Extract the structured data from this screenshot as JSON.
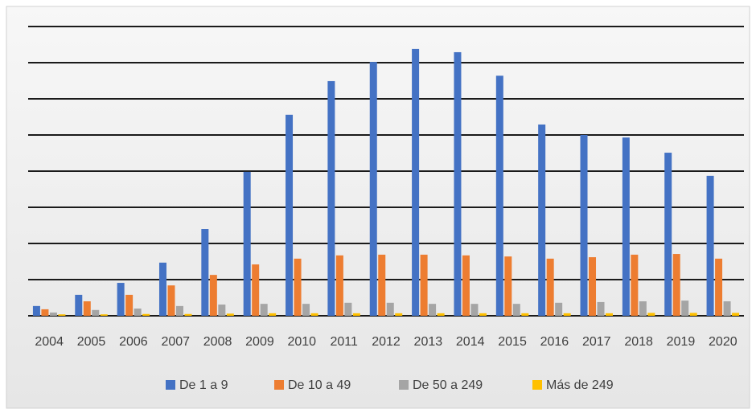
{
  "chart_data": {
    "type": "bar",
    "categories": [
      "2004",
      "2005",
      "2006",
      "2007",
      "2008",
      "2009",
      "2010",
      "2011",
      "2012",
      "2013",
      "2014",
      "2015",
      "2016",
      "2017",
      "2018",
      "2019",
      "2020"
    ],
    "series": [
      {
        "name": "De 1 a 9",
        "color": "#4472c4",
        "values": [
          0.27,
          0.58,
          0.91,
          1.47,
          2.4,
          3.98,
          5.56,
          6.49,
          7.02,
          7.38,
          7.29,
          6.64,
          5.29,
          5.0,
          4.93,
          4.51,
          3.87
        ]
      },
      {
        "name": "De 10 a 49",
        "color": "#ed7d31",
        "values": [
          0.18,
          0.4,
          0.58,
          0.84,
          1.13,
          1.42,
          1.58,
          1.67,
          1.69,
          1.69,
          1.67,
          1.64,
          1.58,
          1.62,
          1.69,
          1.71,
          1.58
        ]
      },
      {
        "name": "De 50 a 249",
        "color": "#a5a5a5",
        "values": [
          0.09,
          0.16,
          0.2,
          0.27,
          0.31,
          0.33,
          0.33,
          0.36,
          0.36,
          0.33,
          0.33,
          0.33,
          0.36,
          0.38,
          0.4,
          0.42,
          0.4
        ]
      },
      {
        "name": "Más de 249",
        "color": "#ffc000",
        "values": [
          0.04,
          0.04,
          0.05,
          0.05,
          0.06,
          0.07,
          0.07,
          0.07,
          0.07,
          0.07,
          0.07,
          0.07,
          0.07,
          0.07,
          0.08,
          0.08,
          0.08
        ]
      }
    ],
    "ylim": [
      0,
      8
    ],
    "yticks": [
      0,
      1,
      2,
      3,
      4,
      5,
      6,
      7,
      8
    ],
    "grid": true,
    "legend": "bottom"
  }
}
